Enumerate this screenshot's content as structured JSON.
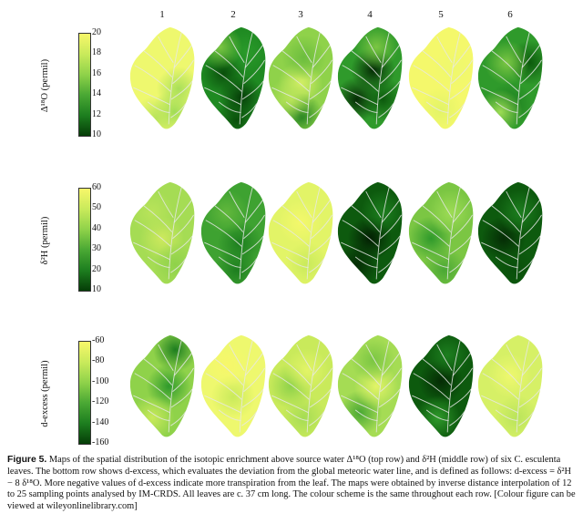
{
  "columns": [
    "1",
    "2",
    "3",
    "4",
    "5",
    "6"
  ],
  "rows": [
    {
      "label": "Δ¹⁸O (permil)",
      "ticks": [
        "20",
        "18",
        "16",
        "14",
        "12",
        "10"
      ],
      "colorbar": [
        "#f7f76a",
        "#c9ea5b",
        "#8fd24a",
        "#4aa834",
        "#1d7e1f",
        "#053d07"
      ],
      "leaves": [
        {
          "base": "#eef86e",
          "spots": [
            [
              "#9ddc55",
              0.68,
              0.82
            ],
            [
              "#b8e45a",
              0.4,
              0.88
            ],
            [
              "#a8df58",
              0.75,
              0.6
            ]
          ]
        },
        {
          "base": "#1f8a22",
          "spots": [
            [
              "#053d07",
              0.62,
              0.68
            ],
            [
              "#0a4f0b",
              0.35,
              0.45
            ],
            [
              "#2a9a2a",
              0.7,
              0.25
            ],
            [
              "#7bc643",
              0.3,
              0.2
            ],
            [
              "#0a4f0b",
              0.55,
              0.9
            ]
          ]
        },
        {
          "base": "#8fd24a",
          "spots": [
            [
              "#d6f066",
              0.5,
              0.55
            ],
            [
              "#6cbd3e",
              0.55,
              0.3
            ],
            [
              "#1d7e1f",
              0.5,
              0.85
            ],
            [
              "#b9e45a",
              0.35,
              0.7
            ]
          ]
        },
        {
          "base": "#2f9a2b",
          "spots": [
            [
              "#052c05",
              0.55,
              0.42
            ],
            [
              "#052c05",
              0.3,
              0.7
            ],
            [
              "#0c5a0d",
              0.7,
              0.7
            ],
            [
              "#7bc643",
              0.6,
              0.2
            ]
          ]
        },
        {
          "base": "#f4f86b",
          "spots": [
            [
              "#e2f467",
              0.5,
              0.8
            ],
            [
              "#eef86e",
              0.7,
              0.4
            ]
          ]
        },
        {
          "base": "#2f9a2b",
          "spots": [
            [
              "#0c5a0d",
              0.8,
              0.35
            ],
            [
              "#7bc643",
              0.45,
              0.35
            ],
            [
              "#1d7e1f",
              0.5,
              0.75
            ],
            [
              "#9ddc55",
              0.35,
              0.82
            ]
          ]
        }
      ]
    },
    {
      "label": "δ²H (permil)",
      "ticks": [
        "60",
        "50",
        "40",
        "30",
        "20",
        "10"
      ],
      "colorbar": [
        "#f7f76a",
        "#c9ea5b",
        "#8fd24a",
        "#4aa834",
        "#1d7e1f",
        "#053d07"
      ],
      "leaves": [
        {
          "base": "#a5dc54",
          "spots": [
            [
              "#cde95d",
              0.5,
              0.55
            ],
            [
              "#8fd24a",
              0.7,
              0.8
            ],
            [
              "#b9e45a",
              0.35,
              0.3
            ]
          ]
        },
        {
          "base": "#3ea231",
          "spots": [
            [
              "#1d7e1f",
              0.6,
              0.6
            ],
            [
              "#62b83c",
              0.4,
              0.3
            ],
            [
              "#1d7e1f",
              0.55,
              0.85
            ]
          ]
        },
        {
          "base": "#e2f467",
          "spots": [
            [
              "#f4f86b",
              0.5,
              0.4
            ],
            [
              "#c9ea5b",
              0.6,
              0.8
            ]
          ]
        },
        {
          "base": "#0d5a0e",
          "spots": [
            [
              "#031f03",
              0.5,
              0.55
            ],
            [
              "#052c05",
              0.3,
              0.8
            ],
            [
              "#1d7e1f",
              0.7,
              0.3
            ]
          ]
        },
        {
          "base": "#7bc643",
          "spots": [
            [
              "#2f9a2b",
              0.35,
              0.55
            ],
            [
              "#9ddc55",
              0.65,
              0.3
            ],
            [
              "#4aa834",
              0.55,
              0.85
            ]
          ]
        },
        {
          "base": "#0d5a0e",
          "spots": [
            [
              "#052c05",
              0.4,
              0.55
            ],
            [
              "#1d7e1f",
              0.65,
              0.3
            ],
            [
              "#0a4f0b",
              0.55,
              0.85
            ]
          ]
        }
      ]
    },
    {
      "label": "d-excess (permil)",
      "ticks": [
        "-60",
        "-80",
        "-100",
        "-120",
        "-140",
        "-160"
      ],
      "colorbar": [
        "#f7f76a",
        "#c9ea5b",
        "#8fd24a",
        "#4aa834",
        "#1d7e1f",
        "#053d07"
      ],
      "leaves": [
        {
          "base": "#8fd24a",
          "spots": [
            [
              "#1d7e1f",
              0.7,
              0.15
            ],
            [
              "#2f9a2b",
              0.6,
              0.5
            ],
            [
              "#c9ea5b",
              0.35,
              0.8
            ]
          ]
        },
        {
          "base": "#eef86e",
          "spots": [
            [
              "#c9ea5b",
              0.5,
              0.6
            ],
            [
              "#f7f76a",
              0.4,
              0.3
            ]
          ]
        },
        {
          "base": "#c9ea5b",
          "spots": [
            [
              "#8fd24a",
              0.35,
              0.5
            ],
            [
              "#e2f467",
              0.6,
              0.35
            ],
            [
              "#a5dc54",
              0.55,
              0.8
            ]
          ]
        },
        {
          "base": "#a5dc54",
          "spots": [
            [
              "#4aa834",
              0.35,
              0.75
            ],
            [
              "#e2f467",
              0.6,
              0.5
            ],
            [
              "#7bc643",
              0.55,
              0.25
            ]
          ]
        },
        {
          "base": "#0d5a0e",
          "spots": [
            [
              "#052c05",
              0.5,
              0.45
            ],
            [
              "#2f9a2b",
              0.45,
              0.8
            ],
            [
              "#1d7e1f",
              0.6,
              0.2
            ]
          ]
        },
        {
          "base": "#d6f066",
          "spots": [
            [
              "#eef86e",
              0.5,
              0.4
            ],
            [
              "#b9e45a",
              0.6,
              0.8
            ]
          ]
        }
      ]
    }
  ],
  "caption": {
    "label": "Figure 5.",
    "text": "Maps of the spatial distribution of the isotopic enrichment above source water Δ¹⁸O (top row) and δ²H (middle row) of six C. esculenta leaves. The bottom row shows d-excess, which evaluates the deviation from the global meteoric water line, and is defined as follows: d-excess = δ²H − 8 δ¹⁸O. More negative values of d-excess indicate more transpiration from the leaf. The maps were obtained by inverse distance interpolation of 12 to 25 sampling points analysed by IM-CRDS. All leaves are c. 37 cm long. The colour scheme is the same throughout each row. [Colour figure can be viewed at wileyonlinelibrary.com]"
  }
}
